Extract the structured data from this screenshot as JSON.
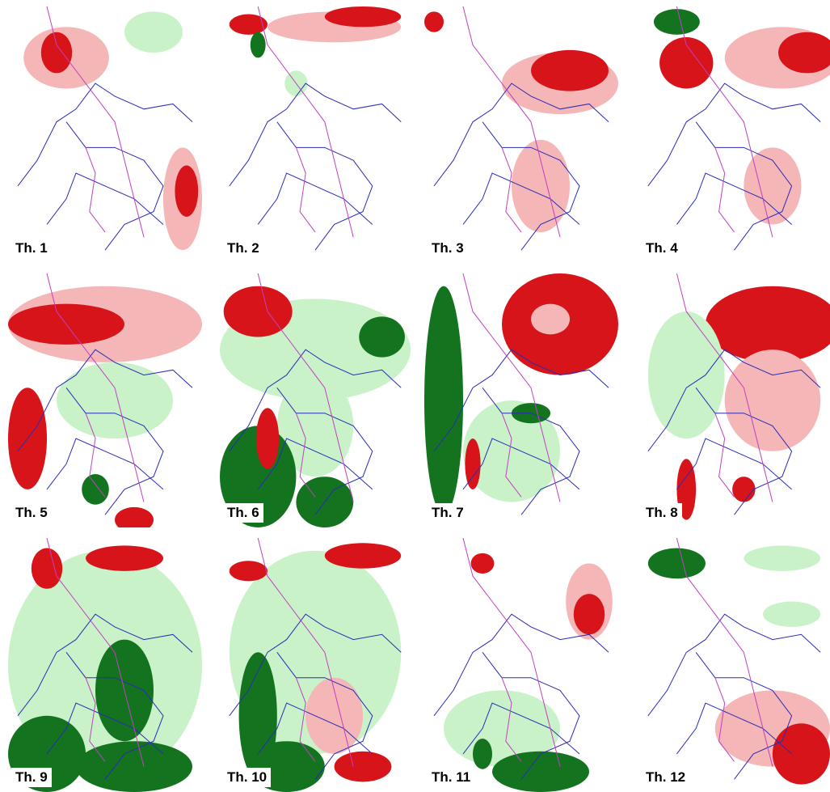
{
  "panels": [
    {
      "label": "Th. 1"
    },
    {
      "label": "Th. 2"
    },
    {
      "label": "Th. 3"
    },
    {
      "label": "Th. 4"
    },
    {
      "label": "Th. 5"
    },
    {
      "label": "Th. 6"
    },
    {
      "label": "Th. 7"
    },
    {
      "label": "Th. 8"
    },
    {
      "label": "Th. 9"
    },
    {
      "label": "Th. 10"
    },
    {
      "label": "Th. 11"
    },
    {
      "label": "Th. 12"
    }
  ]
}
